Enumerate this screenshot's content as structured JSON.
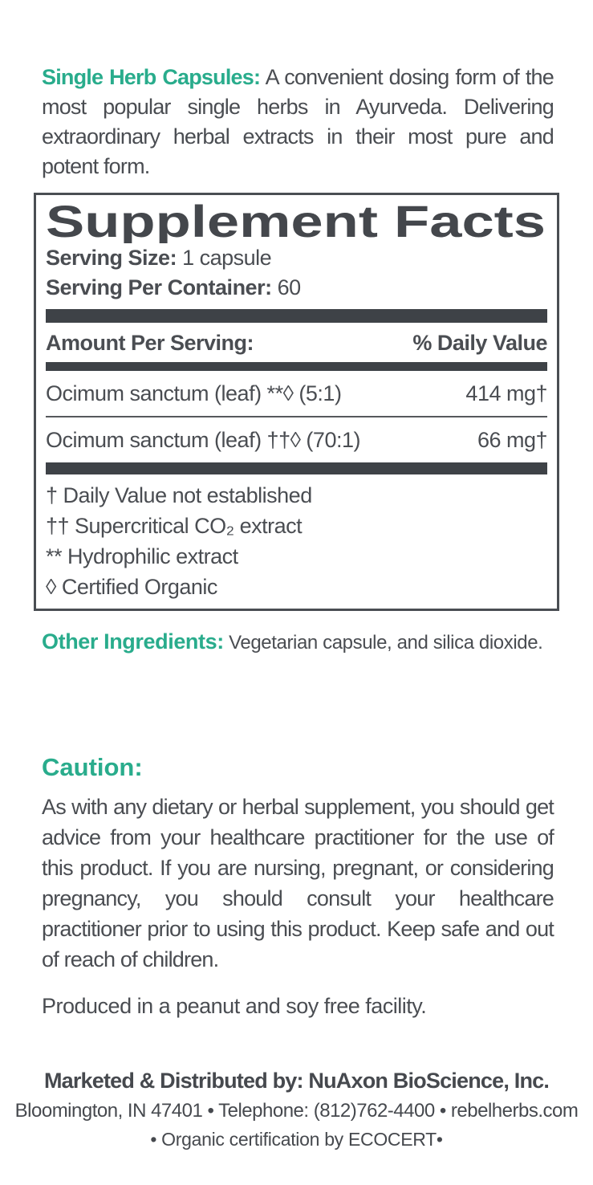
{
  "colors": {
    "accent_teal": "#29ac8c",
    "body_text": "#4a4d52",
    "dark_bar": "#3e4247"
  },
  "intro": {
    "heading": "Single Herb Capsules:",
    "text": "A convenient dosing form of the most popular single herbs in Ayurveda. Delivering extraordinary herbal extracts in their most pure and potent form."
  },
  "supplement_facts": {
    "title": "Supplement Facts",
    "serving_size_label": "Serving Size:",
    "serving_size_value": "1 capsule",
    "servings_label": "Serving Per Container:",
    "servings_value": "60",
    "amount_header": "Amount Per Serving:",
    "dv_header": "% Daily Value",
    "rows": [
      {
        "name": "Ocimum sanctum (leaf) **◊ (5:1)",
        "amount": "414 mg†"
      },
      {
        "name": "Ocimum sanctum (leaf) ††◊ (70:1)",
        "amount": "66 mg†"
      }
    ],
    "footnotes": [
      "† Daily Value not established",
      "†† Supercritical CO₂ extract",
      "** Hydrophilic extract",
      "◊ Certified Organic"
    ]
  },
  "other_ingredients": {
    "label": "Other Ingredients:",
    "text": "Vegetarian capsule, and silica dioxide."
  },
  "caution": {
    "heading": "Caution:",
    "text": "As with any dietary or herbal supplement, you should get advice from your healthcare practitioner for the use of this product. If you are nursing, pregnant, or considering pregnancy, you should consult your healthcare practitioner prior to using this product. Keep safe and out of reach of children."
  },
  "facility_note": "Produced in a peanut and soy free facility.",
  "footer": {
    "distributor": "Marketed & Distributed by: NuAxon BioScience, Inc.",
    "contact": "Bloomington, IN 47401 • Telephone: (812)762-4400 • rebelherbs.com",
    "certification": "• Organic certification by ECOCERT•"
  }
}
